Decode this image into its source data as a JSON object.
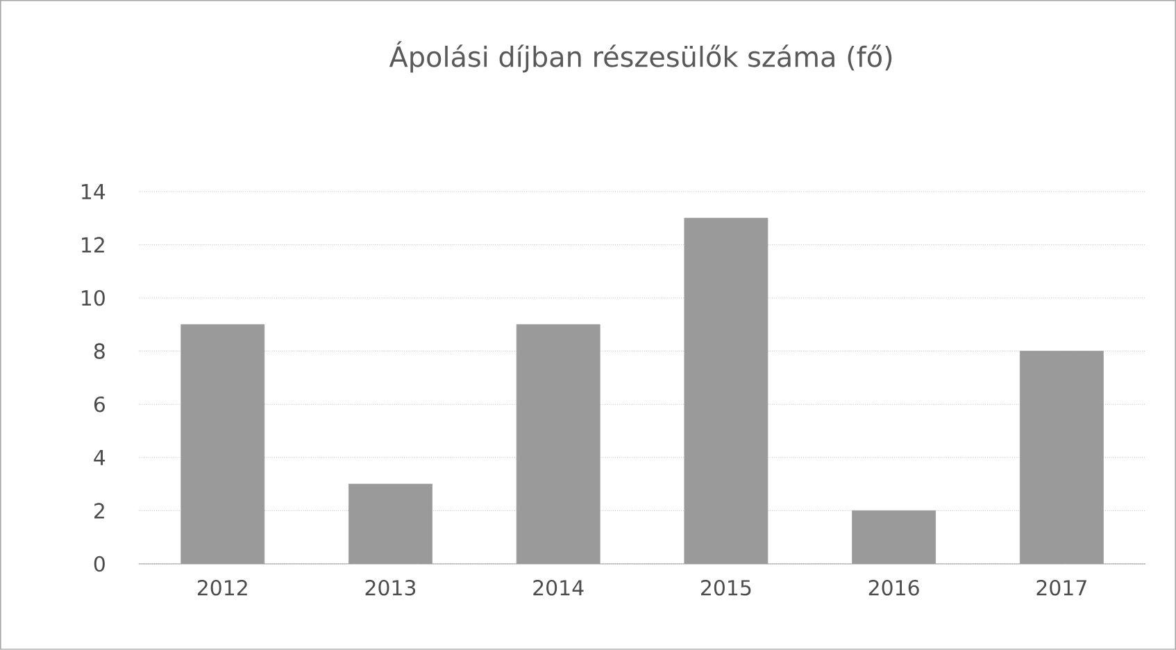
{
  "chart_data": {
    "type": "bar",
    "title": "Ápolási díjban részesülők száma (fő)",
    "categories": [
      "2012",
      "2013",
      "2014",
      "2015",
      "2016",
      "2017"
    ],
    "values": [
      9,
      3,
      9,
      13,
      2,
      8
    ],
    "color": "#9a9a9a",
    "ylim": [
      0,
      14
    ],
    "yticks": [
      0,
      2,
      4,
      6,
      8,
      10,
      12,
      14
    ],
    "grid": "y"
  }
}
